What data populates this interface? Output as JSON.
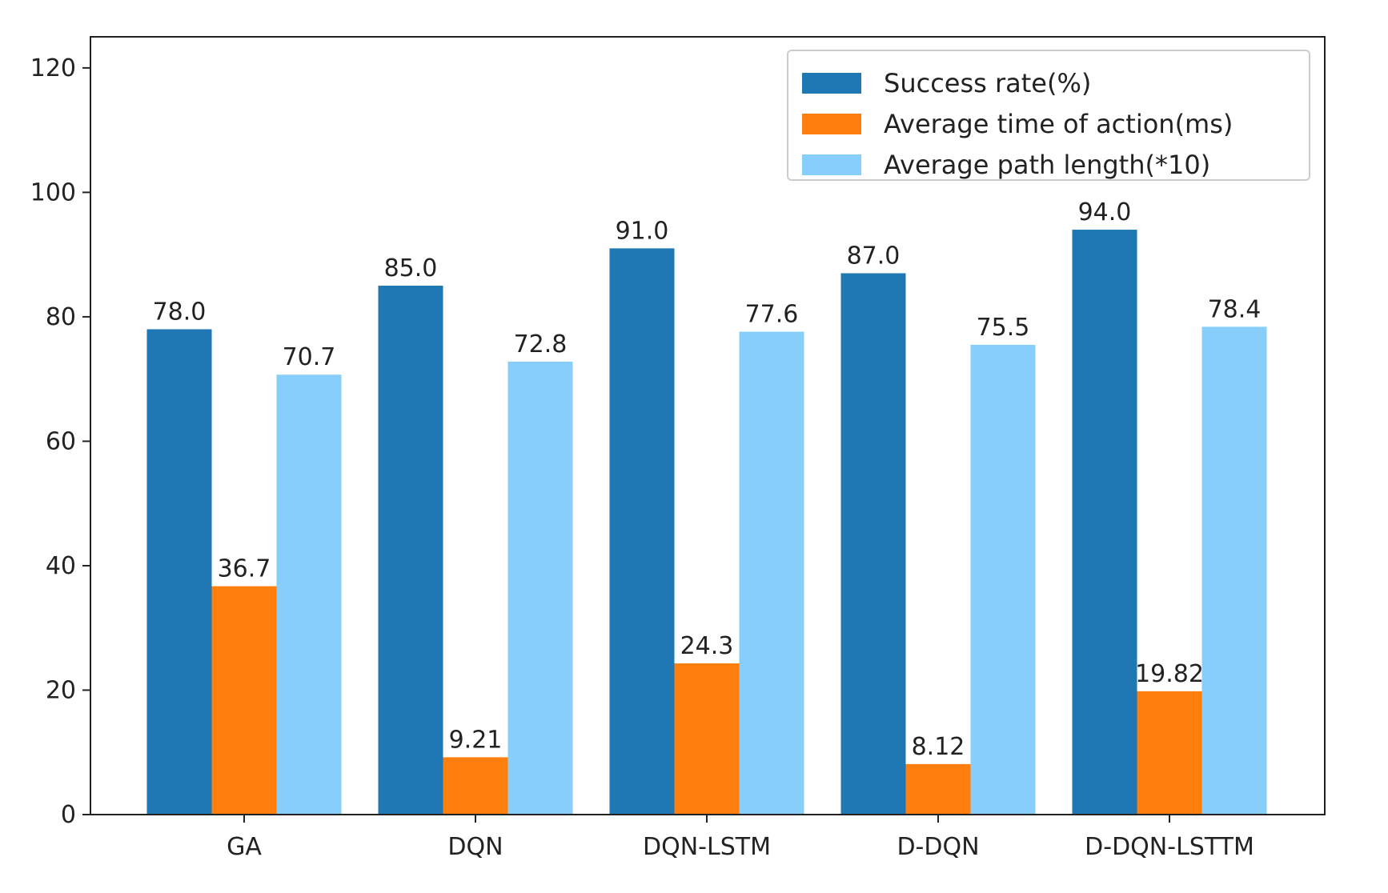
{
  "chart_data": {
    "type": "bar",
    "title": "",
    "xlabel": "",
    "ylabel": "",
    "ylim": [
      0,
      125
    ],
    "yticks": [
      0,
      20,
      40,
      60,
      80,
      100,
      120
    ],
    "grid": false,
    "legend_position": "top-right",
    "categories": [
      "GA",
      "DQN",
      "DQN-LSTM",
      "D-DQN",
      "D-DQN-LSTTM"
    ],
    "series": [
      {
        "name": "Success rate(%)",
        "color": "#1f77b4",
        "values": [
          78.0,
          85.0,
          91.0,
          87.0,
          94.0
        ],
        "labels": [
          "78.0",
          "85.0",
          "91.0",
          "87.0",
          "94.0"
        ]
      },
      {
        "name": "Average time of action(ms)",
        "color": "#ff7f0e",
        "values": [
          36.7,
          9.21,
          24.3,
          8.12,
          19.82
        ],
        "labels": [
          "36.7",
          "9.21",
          "24.3",
          "8.12",
          "19.82"
        ]
      },
      {
        "name": "Average path length(*10)",
        "color": "#87cefa",
        "values": [
          70.7,
          72.8,
          77.6,
          75.5,
          78.4
        ],
        "labels": [
          "70.7",
          "72.8",
          "77.6",
          "75.5",
          "78.4"
        ]
      }
    ]
  }
}
